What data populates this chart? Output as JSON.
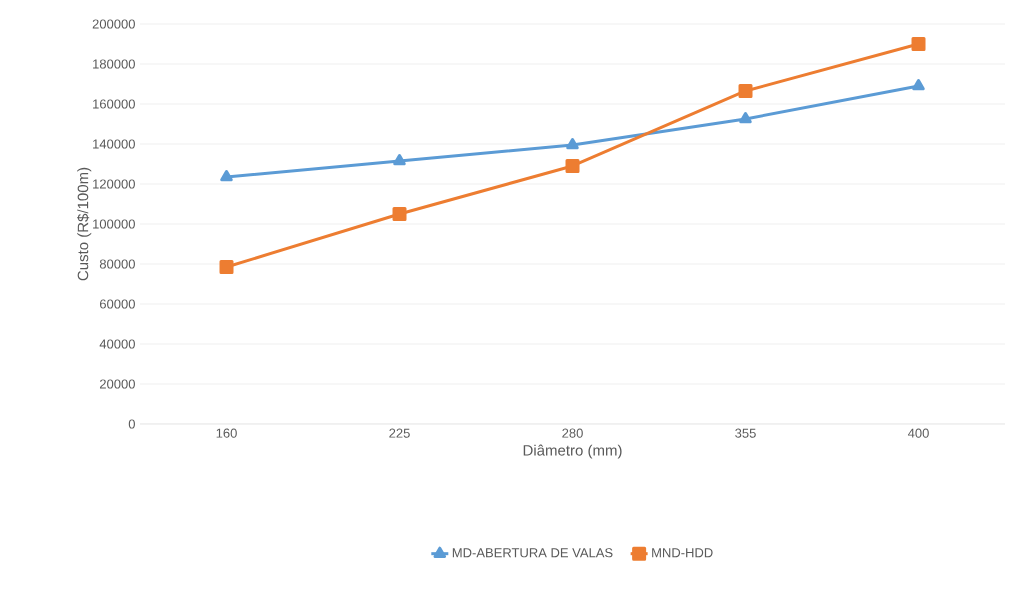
{
  "chart_data": {
    "type": "line",
    "xlabel": "Diâmetro (mm)",
    "ylabel": "Custo (R$/100m)",
    "categories": [
      "160",
      "225",
      "280",
      "355",
      "400"
    ],
    "series": [
      {
        "name": "MD-ABERTURA DE VALAS",
        "color": "#5b9bd5",
        "marker": "triangle",
        "values": [
          123500,
          131500,
          139500,
          152500,
          169000
        ]
      },
      {
        "name": "MND-HDD",
        "color": "#ed7d31",
        "marker": "square",
        "values": [
          78500,
          105000,
          129000,
          166500,
          190000
        ]
      }
    ],
    "ylim": [
      0,
      200000
    ],
    "yticks": [
      0,
      20000,
      40000,
      60000,
      80000,
      100000,
      120000,
      140000,
      160000,
      180000,
      200000
    ],
    "grid": "y",
    "legend": "bottom",
    "line_style": "solid"
  }
}
